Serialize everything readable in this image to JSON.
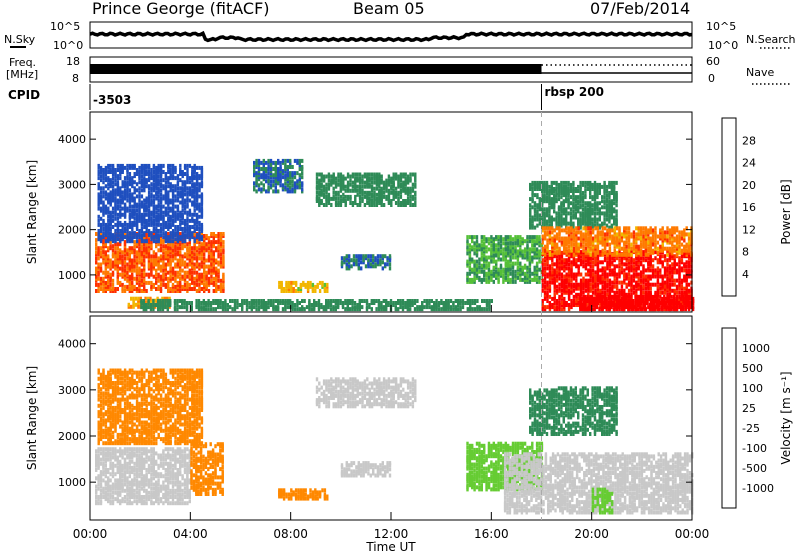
{
  "header": {
    "station": "Prince George (fitACF)",
    "beam": "Beam 05",
    "date": "07/Feb/2014"
  },
  "colors": {
    "power": [
      "#0000ff",
      "#1f4fbf",
      "#2e8b57",
      "#55c038",
      "#f2b600",
      "#ff7a00",
      "#ff3000",
      "#ff0000"
    ],
    "velocity": [
      "#1f3fbf",
      "#1f5fa0",
      "#2e8b57",
      "#66cc33",
      "#c8c8c8",
      "#ffbb00",
      "#ff8800",
      "#ff3300",
      "#ff0000"
    ],
    "line": "#000000",
    "dash": "#aaaaaa"
  },
  "top_panels": {
    "nsky": {
      "left_label": "N.Sky",
      "right_label": "N.Search",
      "axis_hi": "10^5",
      "axis_lo": "10^0",
      "right_hi": "10^5",
      "right_lo": "10^0"
    },
    "freq": {
      "left_label_1": "Freq.",
      "left_label_2": "[MHz]",
      "axis_hi": "18",
      "axis_lo": "8",
      "right_label": "Nave",
      "right_hi": "60",
      "right_lo": "0"
    },
    "cpid": {
      "label": "CPID",
      "values": [
        {
          "text": "-3503",
          "start_hour": 0
        },
        {
          "text": "rbsp 200",
          "start_hour": 18
        }
      ]
    }
  },
  "x_axis": {
    "label": "Time UT",
    "ticks": [
      "00:00",
      "04:00",
      "08:00",
      "12:00",
      "16:00",
      "20:00",
      "00:00"
    ]
  },
  "chart_data": [
    {
      "type": "heatmap",
      "name": "power",
      "ylabel": "Slant Range [km]",
      "xlim_hours": [
        0,
        24
      ],
      "ylim_km": [
        180,
        4600
      ],
      "yticks": [
        1000,
        2000,
        3000,
        4000
      ],
      "colorbar": {
        "label": "Power [dB]",
        "ticks": [
          "28",
          "24",
          "20",
          "16",
          "12",
          "8",
          "4"
        ],
        "range": [
          0,
          32
        ]
      },
      "regions": [
        {
          "t0": 0.2,
          "t1": 5.3,
          "r0": 600,
          "r1": 1900,
          "value": 24
        },
        {
          "t0": 1.5,
          "t1": 3.2,
          "r0": 250,
          "r1": 450,
          "value": 20
        },
        {
          "t0": 0.3,
          "t1": 4.5,
          "r0": 1700,
          "r1": 3400,
          "value": 6
        },
        {
          "t0": 6.5,
          "t1": 8.5,
          "r0": 2800,
          "r1": 3500,
          "value": 8
        },
        {
          "t0": 9.0,
          "t1": 13.0,
          "r0": 2500,
          "r1": 3200,
          "value": 10
        },
        {
          "t0": 7.5,
          "t1": 9.5,
          "r0": 600,
          "r1": 800,
          "value": 18
        },
        {
          "t0": 10.0,
          "t1": 12.0,
          "r0": 1100,
          "r1": 1400,
          "value": 8
        },
        {
          "t0": 15.0,
          "t1": 18.0,
          "r0": 800,
          "r1": 1800,
          "value": 12
        },
        {
          "t0": 17.5,
          "t1": 21.0,
          "r0": 2000,
          "r1": 3000,
          "value": 10
        },
        {
          "t0": 18.0,
          "t1": 24.0,
          "r0": 200,
          "r1": 1500,
          "value": 30
        },
        {
          "t0": 19.5,
          "t1": 24.0,
          "r0": 200,
          "r1": 500,
          "value": 32
        },
        {
          "t0": 18.0,
          "t1": 24.0,
          "r0": 1400,
          "r1": 2000,
          "value": 22
        },
        {
          "t0": 2.0,
          "t1": 16.0,
          "r0": 200,
          "r1": 400,
          "value": 10
        }
      ]
    },
    {
      "type": "heatmap",
      "name": "velocity",
      "ylabel": "Slant Range [km]",
      "xlim_hours": [
        0,
        24
      ],
      "ylim_km": [
        180,
        4600
      ],
      "yticks": [
        1000,
        2000,
        3000,
        4000
      ],
      "colorbar": {
        "label": "Velocity [m s⁻¹]",
        "ticks": [
          "1000",
          "500",
          "100",
          "25",
          "-25",
          "-100",
          "-500",
          "-1000"
        ],
        "range": [
          -1200,
          1200
        ]
      },
      "regions": [
        {
          "t0": 0.2,
          "t1": 4.0,
          "r0": 500,
          "r1": 1700,
          "value": 0
        },
        {
          "t0": 4.0,
          "t1": 5.3,
          "r0": 700,
          "r1": 1800,
          "value": -300
        },
        {
          "t0": 0.3,
          "t1": 4.5,
          "r0": 1800,
          "r1": 3400,
          "value": -150
        },
        {
          "t0": 7.5,
          "t1": 9.5,
          "r0": 600,
          "r1": 800,
          "value": -120
        },
        {
          "t0": 9.0,
          "t1": 13.0,
          "r0": 2600,
          "r1": 3200,
          "value": 0
        },
        {
          "t0": 10.0,
          "t1": 12.0,
          "r0": 1100,
          "r1": 1400,
          "value": 0
        },
        {
          "t0": 15.0,
          "t1": 18.0,
          "r0": 800,
          "r1": 1800,
          "value": 60
        },
        {
          "t0": 16.5,
          "t1": 24.0,
          "r0": 300,
          "r1": 1600,
          "value": 0
        },
        {
          "t0": 17.5,
          "t1": 21.0,
          "r0": 2000,
          "r1": 3000,
          "value": 400
        },
        {
          "t0": 20.0,
          "t1": 20.8,
          "r0": 300,
          "r1": 800,
          "value": 70
        }
      ]
    }
  ]
}
